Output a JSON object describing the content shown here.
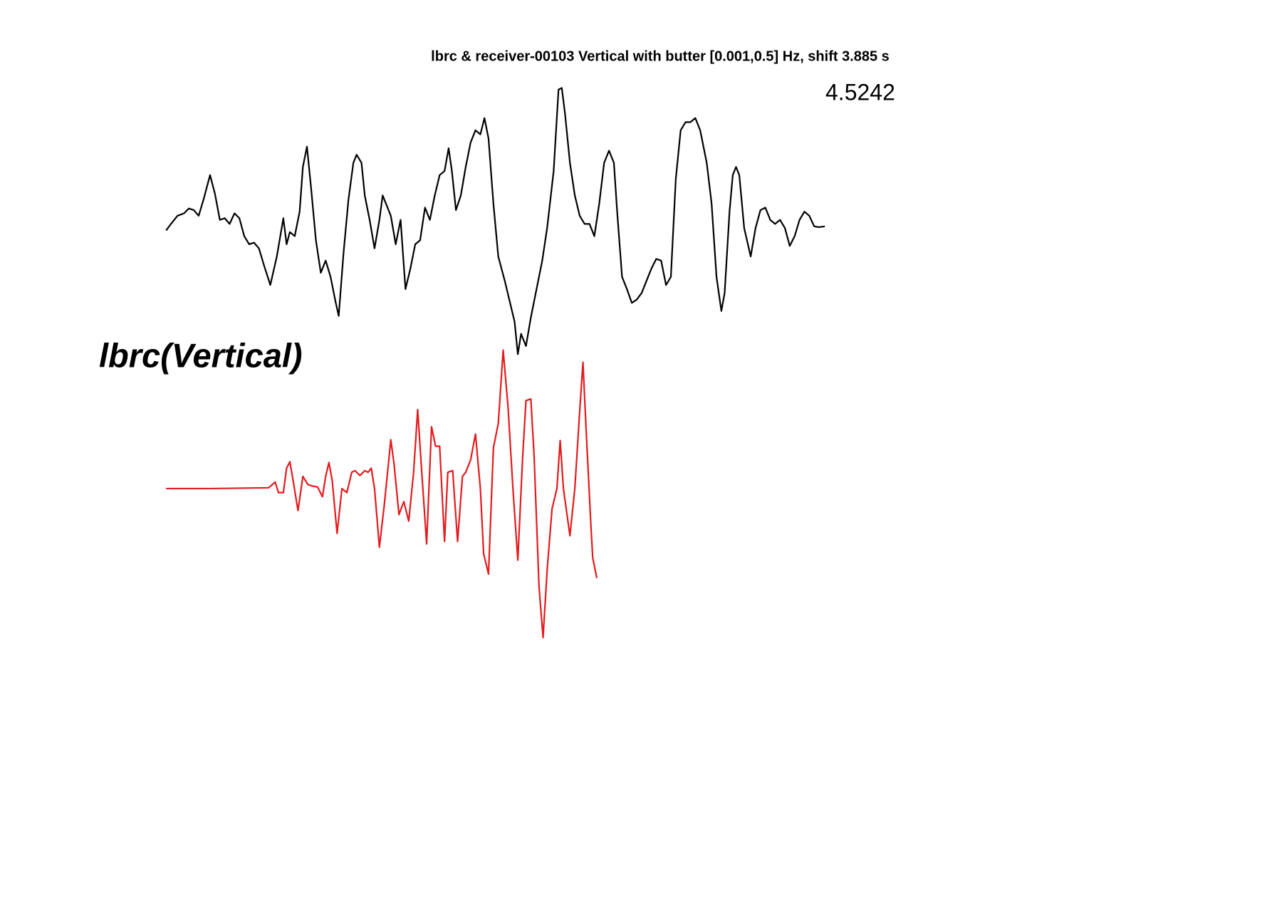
{
  "chart_data": {
    "type": "line",
    "title": "lbrc & receiver-00103 Vertical with butter [0.001,0.5] Hz, shift 3.885 s",
    "annotations": [
      "4.5242",
      "lbrc(Vertical)"
    ],
    "series": [
      {
        "color": "#000000",
        "x": [
          0,
          6,
          14,
          22,
          28,
          34,
          40,
          46,
          54,
          60,
          66,
          72,
          78,
          84,
          90,
          96,
          102,
          108,
          114,
          120,
          128,
          136,
          144,
          148,
          152,
          158,
          164,
          168,
          173,
          178,
          184,
          190,
          196,
          202,
          208,
          212,
          218,
          224,
          230,
          234,
          240,
          244,
          250,
          256,
          262,
          266,
          272,
          276,
          282,
          288,
          294,
          300,
          306,
          312,
          318,
          324,
          330,
          336,
          342,
          347,
          351,
          356,
          362,
          368,
          374,
          380,
          386,
          391,
          396,
          402,
          408,
          416,
          422,
          428,
          432,
          436,
          442,
          448,
          454,
          462,
          468,
          476,
          482,
          486,
          490,
          496,
          502,
          508,
          514,
          520,
          526,
          532,
          538,
          544,
          550,
          554,
          560,
          566,
          572,
          578,
          584,
          590,
          596,
          602,
          608,
          614,
          620,
          626,
          632,
          638,
          644,
          650,
          656,
          664,
          670,
          676,
          682,
          686,
          692,
          696,
          700,
          704,
          710,
          718,
          724,
          730,
          736,
          742,
          748,
          754,
          760,
          766,
          772,
          778,
          784,
          790,
          796,
          802,
          809
        ],
        "values": [
          -5,
          3,
          13,
          16,
          22,
          20,
          13,
          33,
          63,
          40,
          8,
          10,
          3,
          16,
          10,
          -12,
          -22,
          -20,
          -27,
          -47,
          -72,
          -37,
          10,
          -22,
          -7,
          -12,
          18,
          73,
          98,
          48,
          -17,
          -57,
          -42,
          -62,
          -92,
          -110,
          -32,
          33,
          78,
          88,
          78,
          38,
          8,
          -27,
          8,
          38,
          23,
          13,
          -22,
          8,
          -77,
          -52,
          -22,
          -17,
          23,
          8,
          38,
          63,
          68,
          96,
          68,
          20,
          38,
          73,
          103,
          118,
          113,
          133,
          108,
          28,
          -37,
          -67,
          -92,
          -117,
          -157,
          -132,
          -147,
          -112,
          -82,
          -42,
          -2,
          68,
          168,
          170,
          138,
          78,
          38,
          13,
          3,
          3,
          -12,
          28,
          78,
          93,
          78,
          18,
          -62,
          -77,
          -94,
          -90,
          -82,
          -67,
          -52,
          -40,
          -42,
          -72,
          -62,
          58,
          118,
          128,
          128,
          133,
          118,
          78,
          28,
          -62,
          -104,
          -82,
          18,
          63,
          73,
          63,
          -2,
          -37,
          -2,
          20,
          23,
          8,
          3,
          8,
          -2,
          -24,
          -12,
          8,
          18,
          13,
          0,
          -1,
          0
        ]
      },
      {
        "color": "#e41a1c",
        "x": [
          0,
          56,
          126,
          134,
          138,
          144,
          148,
          152,
          156,
          162,
          168,
          174,
          180,
          186,
          192,
          196,
          200,
          204,
          210,
          216,
          222,
          228,
          232,
          238,
          244,
          248,
          252,
          256,
          262,
          268,
          272,
          276,
          280,
          286,
          292,
          298,
          304,
          309,
          314,
          320,
          326,
          331,
          336,
          342,
          346,
          352,
          358,
          364,
          368,
          374,
          380,
          386,
          390,
          396,
          402,
          408,
          414,
          420,
          426,
          432,
          438,
          442,
          448,
          452,
          458,
          463,
          468,
          474,
          480,
          484,
          488,
          496,
          502,
          508,
          512,
          516,
          522,
          524,
          529
        ],
        "values": [
          0,
          0,
          1,
          8,
          -5,
          -5,
          25,
          33,
          10,
          -27,
          15,
          5,
          3,
          2,
          -10,
          15,
          32,
          10,
          -55,
          0,
          -5,
          20,
          22,
          16,
          22,
          20,
          25,
          0,
          -72,
          -20,
          20,
          60,
          30,
          -32,
          -16,
          -40,
          20,
          97,
          20,
          -68,
          76,
          52,
          52,
          -65,
          20,
          22,
          -65,
          15,
          20,
          35,
          67,
          0,
          -80,
          -105,
          50,
          80,
          170,
          100,
          0,
          -88,
          40,
          108,
          110,
          40,
          -120,
          -183,
          -100,
          -25,
          0,
          59,
          0,
          -58,
          0,
          95,
          155,
          70,
          -50,
          -85,
          -110
        ]
      }
    ]
  }
}
